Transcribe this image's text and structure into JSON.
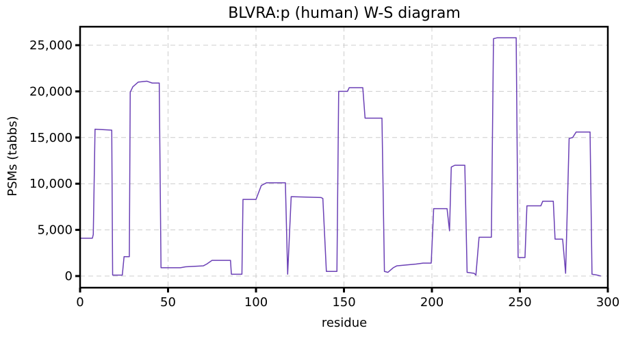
{
  "chart_data": {
    "type": "line",
    "title": "BLVRA:p (human) W-S diagram",
    "xlabel": "residue",
    "ylabel": "PSMs (tabbs)",
    "xlim": [
      0,
      300
    ],
    "ylim": [
      -1260,
      27000
    ],
    "xticks": [
      0,
      50,
      100,
      150,
      200,
      250,
      300
    ],
    "yticks": [
      {
        "value": 0,
        "label": "0"
      },
      {
        "value": 5000,
        "label": "5,000"
      },
      {
        "value": 10000,
        "label": "10,000"
      },
      {
        "value": 15000,
        "label": "15,000"
      },
      {
        "value": 20000,
        "label": "20,000"
      },
      {
        "value": 25000,
        "label": "25,000"
      }
    ],
    "grid": true,
    "x": [
      0,
      7,
      7.5,
      8.5,
      18,
      18.5,
      24,
      25,
      28,
      28.5,
      30,
      33,
      38,
      41,
      45,
      46,
      57,
      60,
      70,
      72,
      75,
      85.5,
      86,
      92,
      92.6,
      100,
      101,
      103,
      106,
      116.7,
      118,
      120,
      137,
      138,
      140,
      146,
      147,
      152,
      153,
      160.7,
      162,
      171.6,
      173,
      175,
      178,
      180,
      191,
      195,
      199.6,
      201,
      208.6,
      210,
      211,
      213,
      218.7,
      220,
      224,
      225,
      226.8,
      233.8,
      235,
      237,
      247.9,
      249,
      252.9,
      254,
      261.9,
      263,
      269,
      270,
      274.3,
      276,
      278,
      280,
      282,
      289.9,
      291,
      294,
      296
    ],
    "series": [
      {
        "name": "BLVRA:p",
        "color": "#6a3fb5",
        "values": [
          4100,
          4100,
          4500,
          15900,
          15800,
          100,
          100,
          2100,
          2100,
          19900,
          20500,
          21000,
          21100,
          20900,
          20900,
          900,
          900,
          1000,
          1100,
          1300,
          1700,
          1700,
          200,
          200,
          8300,
          8300,
          8800,
          9800,
          10100,
          10100,
          200,
          8600,
          8500,
          8400,
          500,
          500,
          20000,
          20000,
          20400,
          20400,
          17100,
          17100,
          500,
          400,
          900,
          1100,
          1300,
          1400,
          1400,
          7300,
          7300,
          4900,
          11800,
          12000,
          12000,
          400,
          300,
          100,
          4200,
          4200,
          25700,
          25800,
          25800,
          2000,
          2000,
          7600,
          7600,
          8100,
          8100,
          4000,
          4000,
          300,
          14900,
          15000,
          15600,
          15600,
          200,
          100,
          0
        ]
      }
    ]
  }
}
